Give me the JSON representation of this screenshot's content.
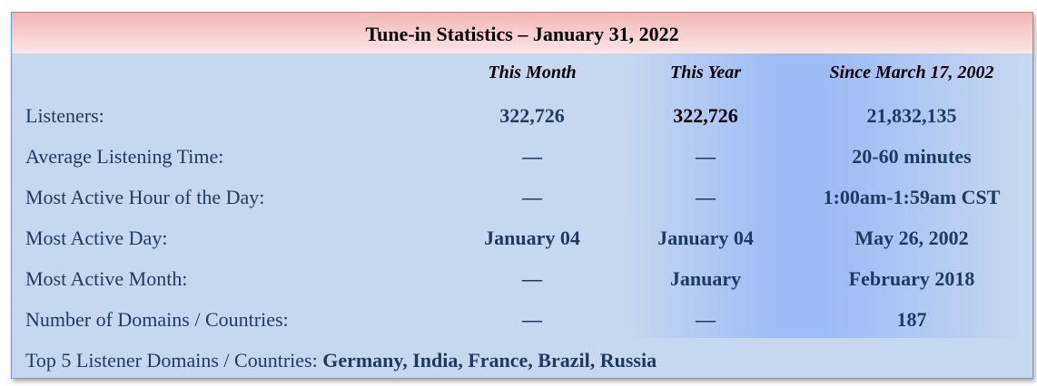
{
  "title": "Tune-in Statistics –  January 31, 2022",
  "columns": [
    "This Month",
    "This Year",
    "Since March 17, 2002"
  ],
  "rows": [
    {
      "label": "Listeners:",
      "values": [
        "322,726",
        "322,726",
        "21,832,135"
      ]
    },
    {
      "label": "Average Listening Time:",
      "values": [
        "—",
        "—",
        "20-60 minutes"
      ]
    },
    {
      "label": "Most Active Hour of the Day:",
      "values": [
        "—",
        "—",
        "1:00am-1:59am CST"
      ]
    },
    {
      "label": "Most Active Day:",
      "values": [
        "January 04",
        "January 04",
        "May 26, 2002"
      ]
    },
    {
      "label": "Most Active Month:",
      "values": [
        "—",
        "January",
        "February 2018"
      ]
    },
    {
      "label": "Number of Domains / Countries:",
      "values": [
        "—",
        "—",
        "187"
      ]
    }
  ],
  "footer": {
    "label": "Top 5 Listener Domains / Countries: ",
    "value": "Germany, India, France, Brazil, Russia"
  },
  "colors": {
    "header_top": "#f3b6b6",
    "background": "#c5d8f0",
    "text": "#1f3a5f",
    "highlight": "#9dbbf5"
  }
}
